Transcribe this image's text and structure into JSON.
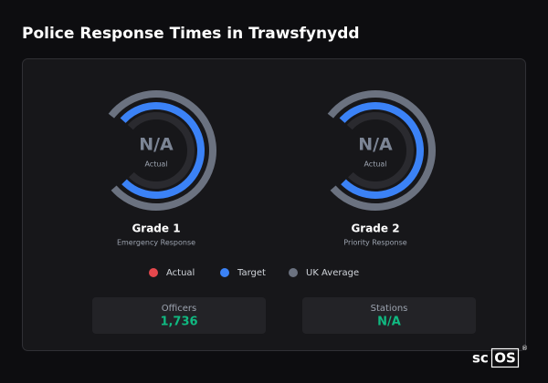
{
  "header": {
    "title": "Police Response Times in Trawsfynydd"
  },
  "gauges": [
    {
      "value": "N/A",
      "caption": "Actual",
      "title": "Grade 1",
      "subtitle": "Emergency Response"
    },
    {
      "value": "N/A",
      "caption": "Actual",
      "title": "Grade 2",
      "subtitle": "Priority Response"
    }
  ],
  "legend": [
    {
      "label": "Actual",
      "color": "#e5484d"
    },
    {
      "label": "Target",
      "color": "#3b82f6"
    },
    {
      "label": "UK Average",
      "color": "#6b7280"
    }
  ],
  "stats": [
    {
      "label": "Officers",
      "value": "1,736"
    },
    {
      "label": "Stations",
      "value": "N/A"
    }
  ],
  "brand": {
    "prefix": "sc",
    "boxed": "OS",
    "mark": "®"
  }
}
